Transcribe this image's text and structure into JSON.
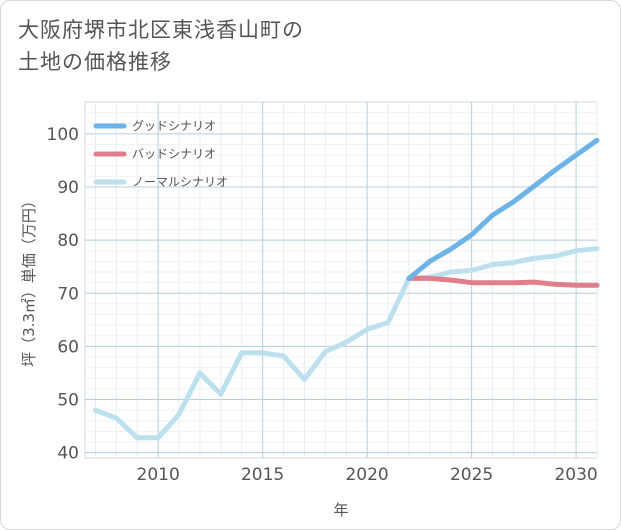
{
  "page": {
    "title_line1": "大阪府堺市北区東浅香山町の",
    "title_line2": "土地の価格推移"
  },
  "chart_data": {
    "type": "line",
    "title": "大阪府堺市北区東浅香山町の土地の価格推移",
    "xlabel": "年",
    "ylabel": "坪（3.3㎡）単価（万円）",
    "xlim": [
      2006.5,
      2031
    ],
    "ylim": [
      39,
      106
    ],
    "xticks": [
      2010,
      2015,
      2020,
      2025,
      2030
    ],
    "yticks": [
      40,
      50,
      60,
      70,
      80,
      90,
      100
    ],
    "grid": true,
    "legend_position": "top-left",
    "series": [
      {
        "name": "ノーマルシナリオ",
        "color": "#bde0ee",
        "x": [
          2007,
          2008,
          2009,
          2010,
          2011,
          2012,
          2013,
          2014,
          2015,
          2016,
          2017,
          2018,
          2019,
          2020,
          2021,
          2022,
          2023,
          2024,
          2025,
          2026,
          2027,
          2028,
          2029,
          2030,
          2031
        ],
        "values": [
          48,
          46.5,
          42.8,
          42.8,
          47.2,
          55,
          51,
          58.8,
          58.8,
          58.2,
          53.8,
          59,
          60.8,
          63.2,
          64.5,
          72.8,
          73,
          74,
          74.3,
          75.4,
          75.8,
          76.6,
          77,
          78,
          78.4
        ]
      },
      {
        "name": "バッドシナリオ",
        "color": "#e07e8c",
        "x": [
          2022,
          2023,
          2024,
          2025,
          2026,
          2027,
          2028,
          2029,
          2030,
          2031
        ],
        "values": [
          72.8,
          72.8,
          72.5,
          72,
          72,
          72,
          72.1,
          71.7,
          71.5,
          71.5
        ]
      },
      {
        "name": "グッドシナリオ",
        "color": "#6cb4e8",
        "x": [
          2022,
          2023,
          2024,
          2025,
          2026,
          2027,
          2028,
          2029,
          2030,
          2031
        ],
        "values": [
          72.8,
          76,
          78.3,
          81,
          84.7,
          87.2,
          90.2,
          93.2,
          96,
          98.8
        ]
      }
    ],
    "legend": [
      {
        "name": "グッドシナリオ",
        "color": "#6cb4e8"
      },
      {
        "name": "バッドシナリオ",
        "color": "#e07e8c"
      },
      {
        "name": "ノーマルシナリオ",
        "color": "#bde0ee"
      }
    ]
  }
}
